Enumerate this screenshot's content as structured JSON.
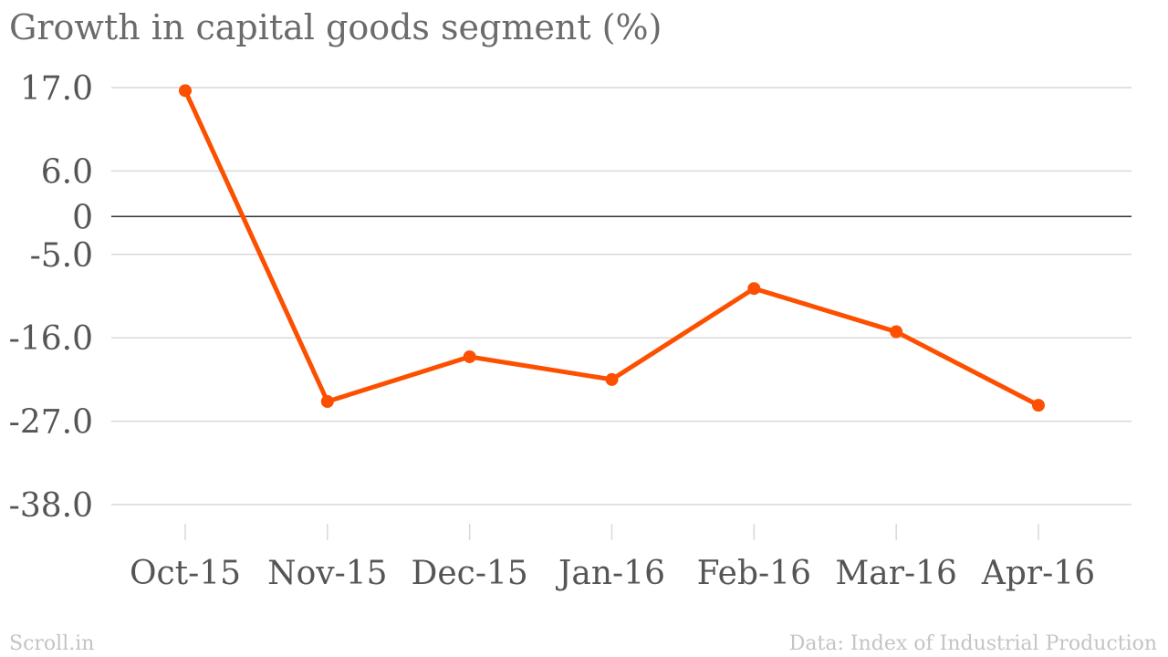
{
  "chart_data": {
    "type": "line",
    "title": "Growth in capital goods segment (%)",
    "xlabel": "",
    "ylabel": "",
    "categories": [
      "Oct-15",
      "Nov-15",
      "Dec-15",
      "Jan-16",
      "Feb-16",
      "Mar-16",
      "Apr-16"
    ],
    "series": [
      {
        "values": [
          16.6,
          -24.4,
          -18.5,
          -21.5,
          -9.5,
          -15.2,
          -24.9
        ],
        "color": "#fc5000"
      }
    ],
    "y_ticks": [
      17.0,
      6.0,
      0,
      -5.0,
      -16.0,
      -27.0,
      -38.0
    ],
    "y_tick_labels": [
      "17.0",
      "6.0",
      "0",
      "-5.0",
      "-16.0",
      "-27.0",
      "-38.0"
    ],
    "ylim": [
      -38.0,
      17.0
    ],
    "grid": true,
    "zero_line": true,
    "legend": "none"
  },
  "footer": {
    "brand": "Scroll.in",
    "source": "Data: Index of Industrial Production"
  },
  "colors": {
    "line": "#fc5000",
    "grid": "#d9d9d9",
    "zero_line": "#333333",
    "text": "#555555",
    "footer_text": "#c4c4c4"
  }
}
